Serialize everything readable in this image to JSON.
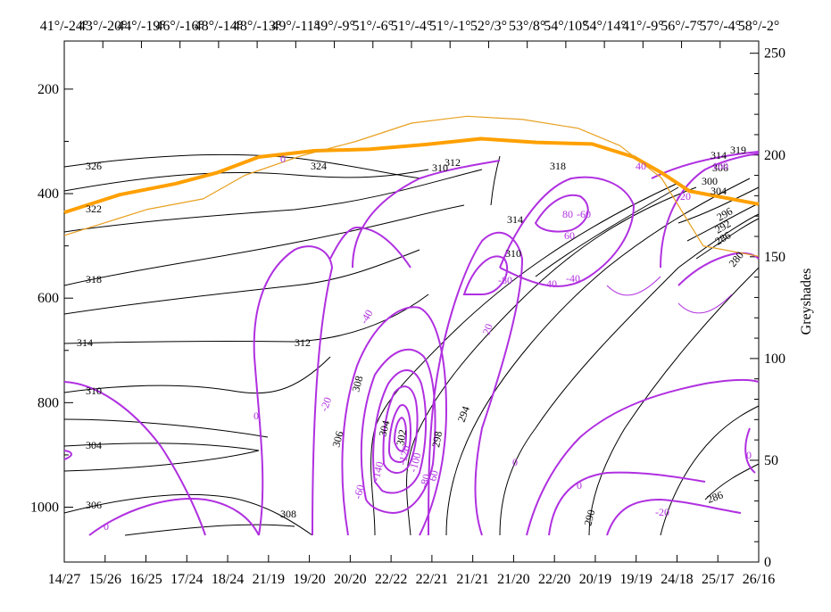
{
  "chart_data": {
    "type": "line",
    "title": "",
    "ylabel_right": "Greyshades",
    "pressure_axis": {
      "range": [
        1105,
        108
      ],
      "ticks": [
        200,
        400,
        600,
        800,
        1000
      ],
      "grid": false
    },
    "greyshade_axis": {
      "range": [
        0,
        256
      ],
      "ticks": [
        0,
        50,
        100,
        150,
        200,
        250
      ]
    },
    "top_axis_labels": [
      "41°/-24°",
      "43°/-20°",
      "44°/-19°",
      "46°/-16°",
      "48°/-14°",
      "48°/-13°",
      "49°/-11°",
      "49°/-9°",
      "51°/-6°",
      "51°/-4°",
      "51°/-1°",
      "52°/3°",
      "53°/8°",
      "54°/10°",
      "54°/14°",
      "41°/-9°",
      "56°/-7°",
      "57°/-4°",
      "58°/-2°"
    ],
    "bottom_axis_labels": [
      "14/27",
      "15/26",
      "16/25",
      "17/24",
      "18/24",
      "21/19",
      "19/20",
      "20/20",
      "22/22",
      "22/21",
      "21/21",
      "21/20",
      "22/20",
      "20/19",
      "19/19",
      "24/18",
      "25/17",
      "26/16"
    ],
    "series": [
      {
        "color": "#ffa000",
        "points": [
          [
            0,
            436
          ],
          [
            0.08,
            402
          ],
          [
            0.16,
            381
          ],
          [
            0.22,
            360
          ],
          [
            0.28,
            330
          ],
          [
            0.36,
            318
          ],
          [
            0.44,
            315
          ],
          [
            0.52,
            306
          ],
          [
            0.6,
            295
          ],
          [
            0.68,
            302
          ],
          [
            0.76,
            305
          ],
          [
            0.82,
            330
          ],
          [
            0.86,
            360
          ],
          [
            0.9,
            395
          ],
          [
            1,
            420
          ]
        ]
      },
      {
        "color": "#e8a020",
        "points": [
          [
            0,
            480
          ],
          [
            0.06,
            455
          ],
          [
            0.12,
            430
          ],
          [
            0.2,
            410
          ],
          [
            0.26,
            365
          ],
          [
            0.34,
            328
          ],
          [
            0.42,
            300
          ],
          [
            0.5,
            265
          ],
          [
            0.58,
            252
          ],
          [
            0.66,
            258
          ],
          [
            0.74,
            275
          ],
          [
            0.8,
            308
          ],
          [
            0.86,
            370
          ],
          [
            0.92,
            500
          ],
          [
            1,
            520
          ]
        ]
      }
    ],
    "black_contour_labels": [
      "326",
      "324",
      "322",
      "318",
      "314",
      "312",
      "310",
      "304",
      "306",
      "308",
      "308",
      "306",
      "304",
      "302",
      "298",
      "294",
      "290",
      "286",
      "280",
      "286",
      "292",
      "296",
      "300",
      "304",
      "306",
      "310",
      "314",
      "314",
      "318",
      "319",
      "310",
      "312"
    ],
    "purple_contour_labels": [
      "0",
      "0",
      "0",
      "0",
      "0",
      "-20",
      "-40",
      "-60",
      "-80",
      "-100",
      "-120",
      "-140",
      "40",
      "60",
      "80",
      "20",
      "-20",
      "-40",
      "-60",
      "-80",
      "-100",
      "60",
      "40",
      "-20",
      "0"
    ],
    "colors": {
      "black_contours": "#000000",
      "purple_contours": "#b030e0",
      "orange_line": "#ffa000"
    }
  }
}
